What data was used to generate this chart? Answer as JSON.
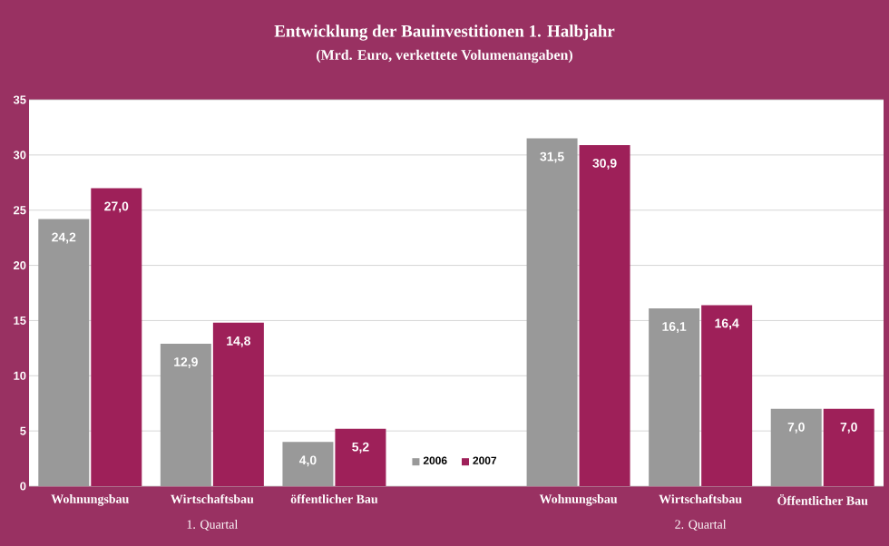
{
  "chart_data": {
    "type": "bar",
    "title": "Entwicklung der Bauinvestitionen 1. Halbjahr",
    "subtitle": "(Mrd. Euro, verkettete Volumenangaben)",
    "categories": [
      "Wohnungsbau",
      "Wirtschaftsbau",
      "öffentlicher Bau",
      null,
      "Wohnungsbau",
      "Wirtschaftsbau",
      "Öffentlicher Bau"
    ],
    "series": [
      {
        "name": "2006",
        "color": "#999999",
        "values": [
          24.2,
          12.9,
          4.0,
          null,
          31.5,
          16.1,
          7.0
        ],
        "value_labels": [
          "24,2",
          "12,9",
          "4,0",
          null,
          "31,5",
          "16,1",
          "7,0"
        ]
      },
      {
        "name": "2007",
        "color": "#9e2059",
        "values": [
          27.0,
          14.8,
          5.2,
          null,
          30.9,
          16.4,
          7.0
        ],
        "value_labels": [
          "27,0",
          "14,8",
          "5,2",
          null,
          "30,9",
          "16,4",
          "7,0"
        ]
      }
    ],
    "ylim": [
      0,
      35
    ],
    "yticks": [
      0,
      5,
      10,
      15,
      20,
      25,
      30,
      35
    ],
    "grid": "y",
    "legend": "bottom",
    "annotations": [
      "1. Quartal",
      "2. Quartal"
    ]
  }
}
